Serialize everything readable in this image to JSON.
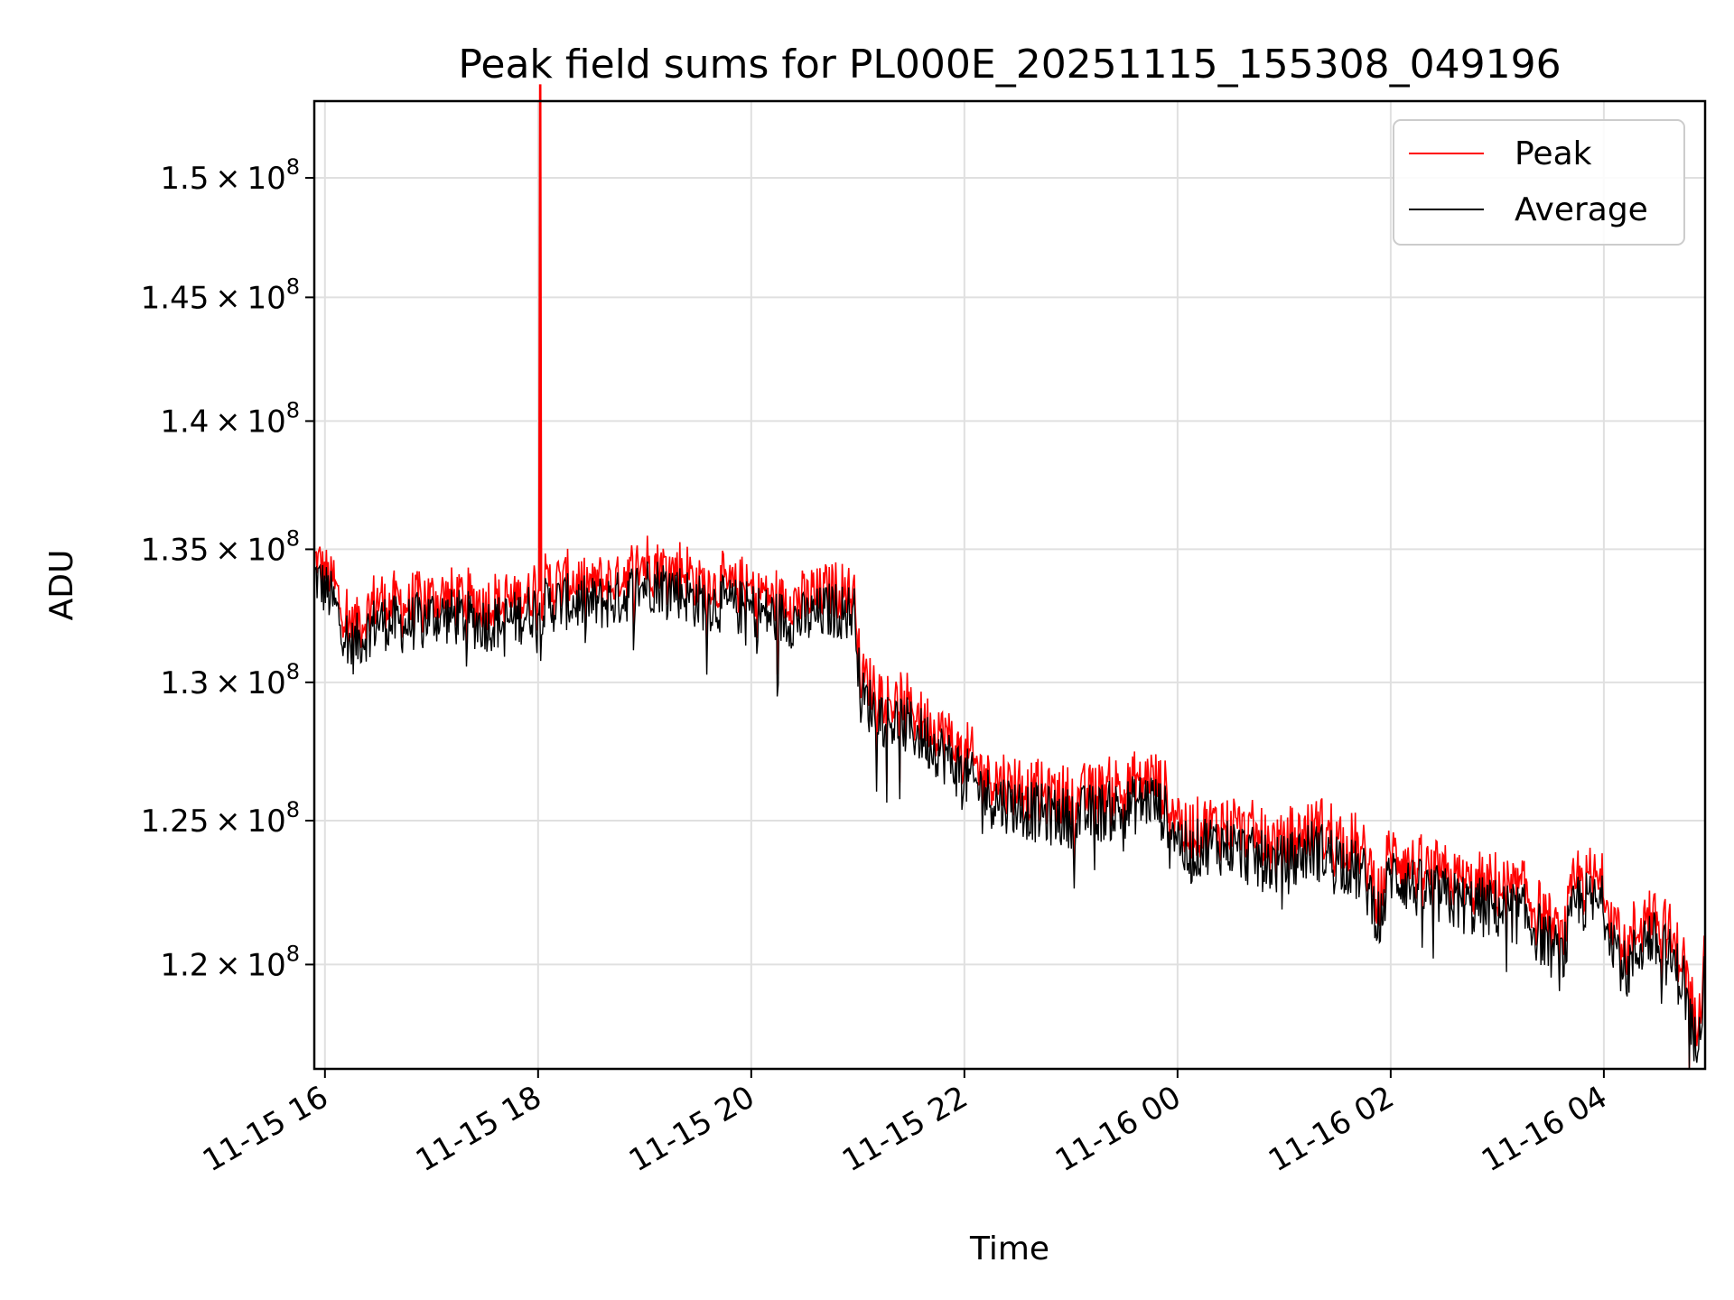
{
  "chart_data": {
    "type": "line",
    "title": "Peak field sums for PL000E_20251115_155308_049196",
    "xlabel": "Time",
    "ylabel": "ADU",
    "x_range_hours": [
      15.9,
      28.95
    ],
    "ylim": [
      116500000,
      153300000
    ],
    "yscale": "log",
    "grid": true,
    "legend_position": "upper right",
    "x_ticks": [
      {
        "value": 16,
        "label": "11-15 16"
      },
      {
        "value": 18,
        "label": "11-15 18"
      },
      {
        "value": 20,
        "label": "11-15 20"
      },
      {
        "value": 22,
        "label": "11-15 22"
      },
      {
        "value": 24,
        "label": "11-16 00"
      },
      {
        "value": 26,
        "label": "11-16 02"
      },
      {
        "value": 28,
        "label": "11-16 04"
      }
    ],
    "y_ticks": [
      {
        "value": 120000000,
        "mantissa": "1.2",
        "exponent": "8"
      },
      {
        "value": 125000000,
        "mantissa": "1.25",
        "exponent": "8"
      },
      {
        "value": 130000000,
        "mantissa": "1.3",
        "exponent": "8"
      },
      {
        "value": 135000000,
        "mantissa": "1.35",
        "exponent": "8"
      },
      {
        "value": 140000000,
        "mantissa": "1.4",
        "exponent": "8"
      },
      {
        "value": 145000000,
        "mantissa": "1.45",
        "exponent": "8"
      },
      {
        "value": 150000000,
        "mantissa": "1.5",
        "exponent": "8"
      }
    ],
    "times_symbol": "×",
    "series": [
      {
        "name": "Peak",
        "color": "#ff0000",
        "x": [
          15.9,
          16.05,
          16.25,
          16.5,
          16.75,
          17.0,
          17.25,
          17.5,
          17.75,
          18.0,
          18.02,
          18.03,
          18.05,
          18.25,
          18.5,
          18.75,
          19.0,
          19.25,
          19.5,
          19.75,
          20.0,
          20.25,
          20.5,
          20.75,
          20.98,
          21.02,
          21.25,
          21.5,
          21.75,
          22.0,
          22.25,
          22.5,
          22.75,
          23.0,
          23.25,
          23.5,
          23.75,
          23.95,
          24.1,
          24.25,
          24.5,
          24.75,
          25.0,
          25.25,
          25.5,
          25.75,
          25.9,
          26.0,
          26.25,
          26.5,
          26.75,
          27.0,
          27.25,
          27.5,
          27.6,
          27.75,
          28.0,
          28.2,
          28.4,
          28.6,
          28.75,
          28.85,
          28.95
        ],
        "y": [
          134500000,
          133800000,
          131900000,
          132900000,
          132700000,
          133100000,
          133000000,
          132800000,
          132900000,
          133400000,
          154000000,
          133800000,
          133700000,
          133600000,
          133500000,
          133700000,
          134300000,
          134200000,
          133600000,
          133500000,
          133300000,
          133000000,
          132900000,
          133300000,
          133200000,
          130100000,
          129300000,
          128900000,
          128200000,
          127200000,
          126400000,
          126100000,
          125800000,
          125700000,
          125900000,
          126000000,
          126400000,
          125500000,
          124300000,
          124800000,
          124700000,
          124200000,
          124000000,
          124600000,
          124300000,
          123600000,
          122100000,
          123800000,
          123200000,
          122900000,
          122600000,
          122500000,
          122300000,
          121200000,
          120700000,
          122800000,
          122600000,
          120300000,
          121600000,
          120900000,
          120000000,
          117800000,
          120200000
        ]
      },
      {
        "name": "Average",
        "color": "#000000",
        "x": [
          15.9,
          16.05,
          16.25,
          16.5,
          16.75,
          17.0,
          17.25,
          17.5,
          17.75,
          18.0,
          18.25,
          18.5,
          18.75,
          19.0,
          19.25,
          19.5,
          19.75,
          20.0,
          20.25,
          20.5,
          20.75,
          20.98,
          21.02,
          21.25,
          21.5,
          21.75,
          22.0,
          22.25,
          22.5,
          22.75,
          23.0,
          23.25,
          23.5,
          23.75,
          23.95,
          24.1,
          24.25,
          24.5,
          24.75,
          25.0,
          25.25,
          25.5,
          25.75,
          25.9,
          26.0,
          26.25,
          26.5,
          26.75,
          27.0,
          27.25,
          27.5,
          27.6,
          27.75,
          28.0,
          28.2,
          28.4,
          28.6,
          28.75,
          28.85,
          28.95
        ],
        "y": [
          134000000,
          133200000,
          131300000,
          132300000,
          132100000,
          132500000,
          132400000,
          132200000,
          132300000,
          132800000,
          133000000,
          132900000,
          133100000,
          133700000,
          133600000,
          133000000,
          132900000,
          132700000,
          132400000,
          132300000,
          132700000,
          132600000,
          129500000,
          128700000,
          128300000,
          127600000,
          126600000,
          125800000,
          125500000,
          125200000,
          125100000,
          125300000,
          125400000,
          125800000,
          124900000,
          123700000,
          124200000,
          124100000,
          123600000,
          123400000,
          124000000,
          123700000,
          123000000,
          121500000,
          123200000,
          122600000,
          122300000,
          122000000,
          121900000,
          121700000,
          120600000,
          120100000,
          122200000,
          122000000,
          119700000,
          121000000,
          120300000,
          119400000,
          117200000,
          119600000
        ]
      }
    ]
  }
}
